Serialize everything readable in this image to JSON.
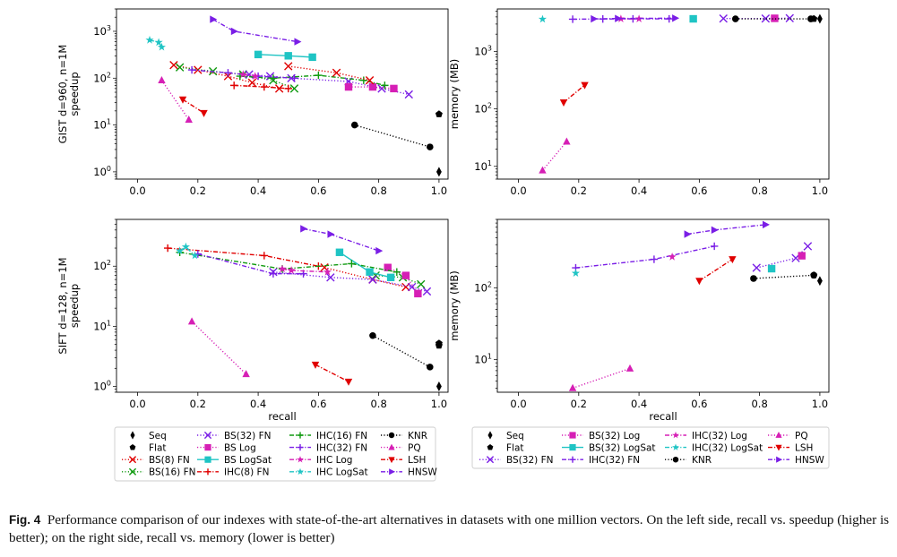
{
  "caption": {
    "label": "Fig. 4",
    "text": "Performance comparison of our indexes with state-of-the-art alternatives in datasets with one million vectors. On the left side, recall vs. speedup (higher is better); on the right side, recall vs. memory (lower is better)"
  },
  "method_styles": {
    "Seq": {
      "color": "#000000",
      "marker": "thin_diamond",
      "line": "none"
    },
    "Flat": {
      "color": "#000000",
      "marker": "pentagon",
      "line": "none"
    },
    "BS(8) FN": {
      "color": "#e00000",
      "marker": "x",
      "line": "dotted"
    },
    "BS(16) FN": {
      "color": "#109a10",
      "marker": "x",
      "line": "dotted"
    },
    "BS(32) FN": {
      "color": "#7a1ee6",
      "marker": "x",
      "line": "dotted"
    },
    "BS Log": {
      "color": "#d61fb5",
      "marker": "square",
      "line": "dotted"
    },
    "BS(32) Log": {
      "color": "#d61fb5",
      "marker": "square",
      "line": "dotted"
    },
    "BS LogSat": {
      "color": "#1fc4c4",
      "marker": "square",
      "line": "solid"
    },
    "BS(32) LogSat": {
      "color": "#1fc4c4",
      "marker": "square",
      "line": "solid"
    },
    "IHC(8) FN": {
      "color": "#e00000",
      "marker": "plus",
      "line": "dashdot"
    },
    "IHC(16) FN": {
      "color": "#109a10",
      "marker": "plus",
      "line": "dashdot"
    },
    "IHC(32) FN": {
      "color": "#7a1ee6",
      "marker": "plus",
      "line": "dashdot"
    },
    "IHC Log": {
      "color": "#d61fb5",
      "marker": "star",
      "line": "dashdot"
    },
    "IHC(32) Log": {
      "color": "#d61fb5",
      "marker": "star",
      "line": "dashdot"
    },
    "IHC LogSat": {
      "color": "#1fc4c4",
      "marker": "star",
      "line": "dashdot"
    },
    "IHC(32) LogSat": {
      "color": "#1fc4c4",
      "marker": "star",
      "line": "dashdot"
    },
    "KNR": {
      "color": "#000000",
      "marker": "circle",
      "line": "dotted"
    },
    "PQ": {
      "color": "#d61fb5",
      "marker": "triangle_up",
      "line": "dotted"
    },
    "LSH": {
      "color": "#e00000",
      "marker": "triangle_down",
      "line": "dashdot"
    },
    "HNSW": {
      "color": "#7a1ee6",
      "marker": "triangle_right",
      "line": "dashdot"
    }
  },
  "chart_data": [
    {
      "type": "line",
      "panel": "top-left",
      "xlabel": "",
      "ylabel": "GIST d=960, n=1M\nspeedup",
      "yscale": "log",
      "xlim": [
        -0.07,
        1.03
      ],
      "ylim": [
        0.7,
        3000
      ],
      "xticks": [
        "0.0",
        "0.2",
        "0.4",
        "0.6",
        "0.8",
        "1.0"
      ],
      "yticks": [
        "10^0",
        "10^1",
        "10^2",
        "10^3"
      ],
      "series": [
        {
          "name": "Seq",
          "x": [
            1.0
          ],
          "y": [
            1.0
          ]
        },
        {
          "name": "Flat",
          "x": [
            1.0
          ],
          "y": [
            17
          ]
        },
        {
          "name": "BS(8) FN",
          "x": [
            0.12,
            0.2,
            0.3,
            0.38,
            0.47
          ],
          "y": [
            190,
            150,
            110,
            80,
            60
          ]
        },
        {
          "name": "BS(16) FN",
          "x": [
            0.14,
            0.25,
            0.35,
            0.45,
            0.52
          ],
          "y": [
            170,
            140,
            120,
            90,
            60
          ]
        },
        {
          "name": "BS(32) FN",
          "x": [
            0.37,
            0.44,
            0.51,
            0.7,
            0.81,
            0.9
          ],
          "y": [
            120,
            110,
            100,
            85,
            60,
            45
          ]
        },
        {
          "name": "BS Log",
          "x": [
            0.7,
            0.78,
            0.85
          ],
          "y": [
            65,
            65,
            60
          ]
        },
        {
          "name": "BS LogSat",
          "x": [
            0.4,
            0.5,
            0.58
          ],
          "y": [
            320,
            300,
            280
          ]
        },
        {
          "name": "IHC(8) FN",
          "x": [
            0.32,
            0.42,
            0.5
          ],
          "y": [
            70,
            65,
            60
          ]
        },
        {
          "name": "IHC(16) FN",
          "x": [
            0.34,
            0.45,
            0.6,
            0.75,
            0.82
          ],
          "y": [
            110,
            100,
            115,
            90,
            70
          ]
        },
        {
          "name": "IHC(32) FN",
          "x": [
            0.18,
            0.3,
            0.4,
            0.52
          ],
          "y": [
            150,
            130,
            110,
            100
          ]
        },
        {
          "name": "IHC Log",
          "x": [
            0.35,
            0.39
          ],
          "y": [
            120,
            110
          ]
        },
        {
          "name": "IHC LogSat",
          "x": [
            0.04,
            0.07,
            0.08
          ],
          "y": [
            650,
            580,
            460
          ]
        },
        {
          "name": "KNR",
          "x": [
            0.72,
            0.97
          ],
          "y": [
            10,
            3.4
          ]
        },
        {
          "name": "PQ",
          "x": [
            0.08,
            0.17
          ],
          "y": [
            90,
            13
          ]
        },
        {
          "name": "LSH",
          "x": [
            0.15,
            0.22
          ],
          "y": [
            35,
            18
          ]
        },
        {
          "name": "HNSW",
          "x": [
            0.25,
            0.32,
            0.53
          ],
          "y": [
            1800,
            1000,
            600
          ]
        },
        {
          "name": "BS(8) FN b",
          "x": [
            0.5,
            0.66,
            0.77
          ],
          "y": [
            180,
            130,
            90
          ]
        }
      ]
    },
    {
      "type": "line",
      "panel": "top-right",
      "xlabel": "",
      "ylabel": "memory (MB)",
      "yscale": "log",
      "xlim": [
        -0.07,
        1.03
      ],
      "ylim": [
        6,
        5500
      ],
      "xticks": [
        "0.0",
        "0.2",
        "0.4",
        "0.6",
        "0.8",
        "1.0"
      ],
      "yticks": [
        "10^1",
        "10^2",
        "10^3"
      ],
      "series": [
        {
          "name": "Seq",
          "x": [
            1.0
          ],
          "y": [
            3700
          ]
        },
        {
          "name": "Flat",
          "x": [
            0.98
          ],
          "y": [
            3700
          ]
        },
        {
          "name": "BS(32) FN",
          "x": [
            0.68,
            0.82,
            0.9
          ],
          "y": [
            3750,
            3750,
            3800
          ]
        },
        {
          "name": "BS(32) Log",
          "x": [
            0.85
          ],
          "y": [
            3780
          ]
        },
        {
          "name": "BS(32) LogSat",
          "x": [
            0.58
          ],
          "y": [
            3700
          ]
        },
        {
          "name": "IHC(32) FN",
          "x": [
            0.18,
            0.28,
            0.38,
            0.5
          ],
          "y": [
            3650,
            3680,
            3700,
            3700
          ]
        },
        {
          "name": "IHC(32) Log",
          "x": [
            0.34,
            0.4
          ],
          "y": [
            3700,
            3700
          ]
        },
        {
          "name": "IHC(32) LogSat",
          "x": [
            0.08
          ],
          "y": [
            3650
          ]
        },
        {
          "name": "KNR",
          "x": [
            0.72,
            0.97
          ],
          "y": [
            3700,
            3700
          ]
        },
        {
          "name": "PQ",
          "x": [
            0.08,
            0.16
          ],
          "y": [
            8.5,
            27
          ]
        },
        {
          "name": "LSH",
          "x": [
            0.15,
            0.22
          ],
          "y": [
            130,
            260
          ]
        },
        {
          "name": "HNSW",
          "x": [
            0.25,
            0.33,
            0.52
          ],
          "y": [
            3700,
            3750,
            3800
          ]
        }
      ]
    },
    {
      "type": "line",
      "panel": "bottom-left",
      "xlabel": "recall",
      "ylabel": "SIFT d=128, n=1M\nspeedup",
      "yscale": "log",
      "xlim": [
        -0.07,
        1.03
      ],
      "ylim": [
        0.8,
        600
      ],
      "xticks": [
        "0.0",
        "0.2",
        "0.4",
        "0.6",
        "0.8",
        "1.0"
      ],
      "yticks": [
        "10^0",
        "10^1",
        "10^2"
      ],
      "series": [
        {
          "name": "Seq",
          "x": [
            1.0
          ],
          "y": [
            1.0
          ]
        },
        {
          "name": "Flat",
          "x": [
            1.0,
            1.0
          ],
          "y": [
            5.2,
            4.8
          ]
        },
        {
          "name": "BS(8) FN",
          "x": [
            0.62,
            0.78,
            0.89
          ],
          "y": [
            95,
            60,
            45
          ]
        },
        {
          "name": "BS(16) FN",
          "x": [
            0.79,
            0.88,
            0.94
          ],
          "y": [
            70,
            65,
            50
          ]
        },
        {
          "name": "BS(32) FN",
          "x": [
            0.45,
            0.64,
            0.78,
            0.91,
            0.96
          ],
          "y": [
            80,
            65,
            60,
            45,
            38
          ]
        },
        {
          "name": "BS Log",
          "x": [
            0.83,
            0.89,
            0.93
          ],
          "y": [
            95,
            70,
            35
          ]
        },
        {
          "name": "BS LogSat",
          "x": [
            0.67,
            0.77,
            0.84
          ],
          "y": [
            170,
            80,
            65
          ]
        },
        {
          "name": "IHC(8) FN",
          "x": [
            0.1,
            0.42,
            0.6
          ],
          "y": [
            200,
            150,
            100
          ]
        },
        {
          "name": "IHC(16) FN",
          "x": [
            0.14,
            0.48,
            0.71,
            0.86
          ],
          "y": [
            170,
            90,
            110,
            80
          ]
        },
        {
          "name": "IHC(32) FN",
          "x": [
            0.2,
            0.45,
            0.55
          ],
          "y": [
            160,
            75,
            75
          ]
        },
        {
          "name": "IHC Log",
          "x": [
            0.48,
            0.51,
            0.63
          ],
          "y": [
            90,
            85,
            80
          ]
        },
        {
          "name": "IHC LogSat",
          "x": [
            0.14,
            0.16,
            0.19
          ],
          "y": [
            180,
            210,
            150
          ]
        },
        {
          "name": "KNR",
          "x": [
            0.78,
            0.97
          ],
          "y": [
            7,
            2.1
          ]
        },
        {
          "name": "PQ",
          "x": [
            0.18,
            0.36
          ],
          "y": [
            12,
            1.6
          ]
        },
        {
          "name": "LSH",
          "x": [
            0.59,
            0.7
          ],
          "y": [
            2.3,
            1.2
          ]
        },
        {
          "name": "HNSW",
          "x": [
            0.55,
            0.64,
            0.8
          ],
          "y": [
            420,
            340,
            180
          ]
        }
      ]
    },
    {
      "type": "line",
      "panel": "bottom-right",
      "xlabel": "recall",
      "ylabel": "memory (MB)",
      "yscale": "log",
      "xlim": [
        -0.07,
        1.03
      ],
      "ylim": [
        3.5,
        900
      ],
      "xticks": [
        "0.0",
        "0.2",
        "0.4",
        "0.6",
        "0.8",
        "1.0"
      ],
      "yticks": [
        "10^1",
        "10^2"
      ],
      "series": [
        {
          "name": "Seq",
          "x": [
            1.0
          ],
          "y": [
            125
          ]
        },
        {
          "name": "Flat",
          "x": [
            0.98
          ],
          "y": [
            150
          ]
        },
        {
          "name": "BS(32) FN",
          "x": [
            0.79,
            0.92,
            0.96
          ],
          "y": [
            190,
            260,
            380
          ]
        },
        {
          "name": "BS(32) Log",
          "x": [
            0.94
          ],
          "y": [
            280
          ]
        },
        {
          "name": "BS(32) LogSat",
          "x": [
            0.84
          ],
          "y": [
            185
          ]
        },
        {
          "name": "IHC(32) FN",
          "x": [
            0.19,
            0.45,
            0.65
          ],
          "y": [
            190,
            250,
            380
          ]
        },
        {
          "name": "IHC(32) Log",
          "x": [
            0.51
          ],
          "y": [
            270
          ]
        },
        {
          "name": "IHC(32) LogSat",
          "x": [
            0.19
          ],
          "y": [
            160
          ]
        },
        {
          "name": "KNR",
          "x": [
            0.78,
            0.98
          ],
          "y": [
            135,
            150
          ]
        },
        {
          "name": "PQ",
          "x": [
            0.18,
            0.37
          ],
          "y": [
            4,
            7.5
          ]
        },
        {
          "name": "LSH",
          "x": [
            0.6,
            0.71
          ],
          "y": [
            125,
            250
          ]
        },
        {
          "name": "HNSW",
          "x": [
            0.56,
            0.65,
            0.82
          ],
          "y": [
            560,
            640,
            760
          ]
        }
      ]
    }
  ],
  "legends": [
    {
      "position": "below-left",
      "columns": [
        [
          "Seq",
          "Flat",
          "BS(8) FN",
          "BS(16) FN"
        ],
        [
          "BS(32) FN",
          "BS Log",
          "BS LogSat",
          "IHC(8) FN"
        ],
        [
          "IHC(16) FN",
          "IHC(32) FN",
          "IHC Log",
          "IHC LogSat"
        ],
        [
          "KNR",
          "PQ",
          "LSH",
          "HNSW"
        ]
      ]
    },
    {
      "position": "below-right",
      "columns": [
        [
          "Seq",
          "Flat",
          "BS(32) FN"
        ],
        [
          "BS(32) Log",
          "BS(32) LogSat",
          "IHC(32) FN"
        ],
        [
          "IHC(32) Log",
          "IHC(32) LogSat",
          "KNR"
        ],
        [
          "PQ",
          "LSH",
          "HNSW"
        ]
      ]
    }
  ]
}
